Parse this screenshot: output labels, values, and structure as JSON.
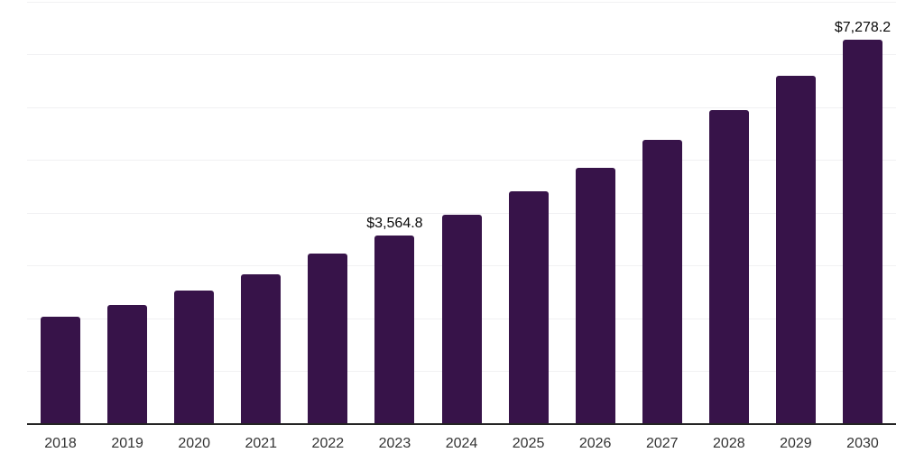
{
  "chart_data": {
    "type": "bar",
    "title": "",
    "xlabel": "",
    "ylabel": "",
    "categories": [
      "2018",
      "2019",
      "2020",
      "2021",
      "2022",
      "2023",
      "2024",
      "2025",
      "2026",
      "2027",
      "2028",
      "2029",
      "2030"
    ],
    "values": [
      2020,
      2250,
      2530,
      2830,
      3220,
      3564.8,
      3955,
      4400,
      4855,
      5375,
      5940,
      6600,
      7278.2
    ],
    "data_labels": {
      "2023": "$3,564.8",
      "2030": "$7,278.2"
    },
    "ylim": [
      0,
      8000
    ],
    "y_gridline_step": 1000,
    "grid": true,
    "legend": "none",
    "colors": {
      "bar": "#371349",
      "axis_line": "#242424",
      "gridline": "#f1f1f3",
      "tick_label": "#333333",
      "data_label": "#0a0a0a",
      "background": "#ffffff"
    }
  }
}
